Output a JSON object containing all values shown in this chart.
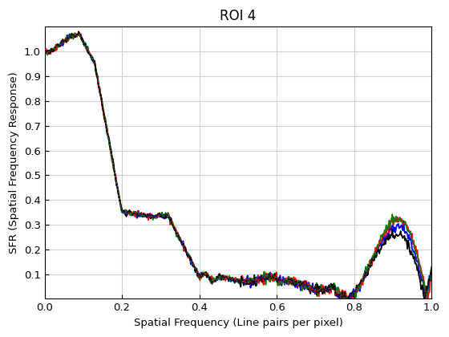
{
  "title": "ROI 4",
  "xlabel": "Spatial Frequency (Line pairs per pixel)",
  "ylabel": "SFR (Spatial Frequency Response)",
  "xlim": [
    0,
    1
  ],
  "ylim": [
    0,
    1.1
  ],
  "line_colors": [
    "blue",
    "red",
    "green",
    "black"
  ],
  "background_color": "#ffffff",
  "grid_color": "#d0d0d0",
  "title_fontsize": 12,
  "label_fontsize": 9.5,
  "tick_fontsize": 9.5,
  "n_points": 512,
  "seeds": [
    1,
    4,
    8,
    15
  ]
}
